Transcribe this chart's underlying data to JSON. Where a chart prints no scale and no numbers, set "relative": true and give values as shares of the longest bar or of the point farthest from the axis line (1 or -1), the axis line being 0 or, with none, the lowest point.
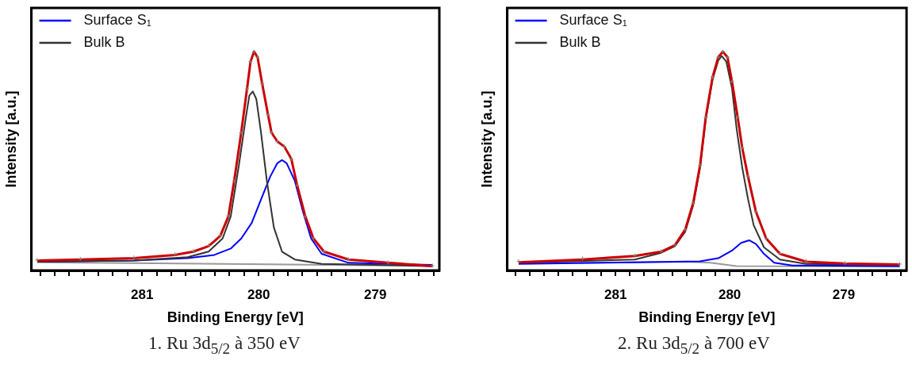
{
  "chart_data": [
    {
      "type": "line",
      "title": "1. Ru 3d$_{5/2}$ à 350 eV",
      "xlabel": "Binding Energy [eV]",
      "ylabel": "Intensity [a.u.]",
      "relative": true,
      "legend": "top left",
      "grid": false,
      "xlim": [
        281.95,
        278.45
      ],
      "xticks": [
        {
          "value": 281.875,
          "label": null
        },
        {
          "value": 281.75,
          "label": null
        },
        {
          "value": 281.625,
          "label": null
        },
        {
          "value": 281.5,
          "label": null
        },
        {
          "value": 281.375,
          "label": null
        },
        {
          "value": 281.25,
          "label": null
        },
        {
          "value": 281.125,
          "label": null
        },
        281,
        {
          "value": 280.875,
          "label": null
        },
        {
          "value": 280.75,
          "label": null
        },
        {
          "value": 280.625,
          "label": null
        },
        {
          "value": 280.5,
          "label": null
        },
        {
          "value": 280.375,
          "label": null
        },
        {
          "value": 280.25,
          "label": null
        },
        {
          "value": 280.125,
          "label": null
        },
        280,
        {
          "value": 279.875,
          "label": null
        },
        {
          "value": 279.75,
          "label": null
        },
        {
          "value": 279.625,
          "label": null
        },
        {
          "value": 279.5,
          "label": null
        },
        {
          "value": 279.375,
          "label": null
        },
        {
          "value": 279.25,
          "label": null
        },
        {
          "value": 279.125,
          "label": null
        },
        279,
        {
          "value": 278.875,
          "label": null
        },
        {
          "value": 278.75,
          "label": null
        },
        {
          "value": 278.625,
          "label": null
        },
        {
          "value": 278.5,
          "label": null
        }
      ],
      "series": [
        {
          "color": "#999999",
          "x": [
            281.9,
            279.92,
            278.51
          ],
          "values": [
            0.037,
            0.028,
            0.02
          ]
        },
        {
          "name": "Surface S₁",
          "color": "#0000ff",
          "x": [
            281.9,
            281.07,
            280.61,
            280.38,
            280.24,
            280.15,
            280.06,
            279.97,
            279.9,
            279.84,
            279.8,
            279.76,
            279.69,
            279.62,
            279.55,
            279.46,
            279.23,
            278.51
          ],
          "values": [
            0.04,
            0.045,
            0.056,
            0.071,
            0.1,
            0.146,
            0.217,
            0.338,
            0.43,
            0.49,
            0.505,
            0.49,
            0.41,
            0.268,
            0.146,
            0.076,
            0.035,
            0.025
          ]
        },
        {
          "name": "Bulk B",
          "color": "#333333",
          "x": [
            281.9,
            281.07,
            280.61,
            280.43,
            280.31,
            280.24,
            280.17,
            280.11,
            280.08,
            280.05,
            280.02,
            279.98,
            279.93,
            279.87,
            279.8,
            279.69,
            279.46,
            279.0,
            278.51
          ],
          "values": [
            0.04,
            0.045,
            0.061,
            0.086,
            0.146,
            0.247,
            0.48,
            0.7,
            0.8,
            0.818,
            0.783,
            0.63,
            0.41,
            0.197,
            0.086,
            0.05,
            0.03,
            0.025,
            0.02
          ]
        },
        {
          "type": "scatter",
          "marker": "cross",
          "color": "#808080",
          "x": [
            281.9,
            281.53,
            281.07,
            280.72,
            280.56,
            280.43,
            280.33,
            280.26,
            280.21,
            280.15,
            280.1,
            280.07,
            280.04,
            280.01,
            279.97,
            279.92,
            279.89,
            279.84,
            279.78,
            279.72,
            279.67,
            279.6,
            279.53,
            279.44,
            279.23,
            278.89,
            278.51
          ],
          "values": [
            0.048,
            0.053,
            0.059,
            0.074,
            0.089,
            0.114,
            0.16,
            0.25,
            0.41,
            0.63,
            0.83,
            0.955,
            1.0,
            0.975,
            0.854,
            0.712,
            0.63,
            0.59,
            0.566,
            0.51,
            0.389,
            0.247,
            0.146,
            0.086,
            0.052,
            0.037,
            0.022
          ]
        },
        {
          "color": "#cc0000",
          "x": [
            281.9,
            281.53,
            281.07,
            280.72,
            280.56,
            280.43,
            280.33,
            280.26,
            280.21,
            280.15,
            280.1,
            280.07,
            280.04,
            280.01,
            279.97,
            279.92,
            279.89,
            279.84,
            279.78,
            279.72,
            279.67,
            279.6,
            279.53,
            279.44,
            279.23,
            278.89,
            278.51
          ],
          "values": [
            0.045,
            0.05,
            0.056,
            0.071,
            0.086,
            0.111,
            0.157,
            0.247,
            0.41,
            0.63,
            0.83,
            0.955,
            1.0,
            0.975,
            0.854,
            0.712,
            0.63,
            0.59,
            0.566,
            0.51,
            0.389,
            0.247,
            0.146,
            0.086,
            0.05,
            0.035,
            0.02
          ]
        }
      ]
    },
    {
      "type": "line",
      "title": "2. Ru 3d$_{5/2}$ à 700 eV",
      "xlabel": "Binding Energy [eV]",
      "ylabel": "Intensity [a.u.]",
      "relative": true,
      "legend": "top left",
      "grid": false,
      "xlim": [
        281.95,
        278.45
      ],
      "xticks": [
        {
          "value": 281.875,
          "label": null
        },
        {
          "value": 281.75,
          "label": null
        },
        {
          "value": 281.625,
          "label": null
        },
        {
          "value": 281.5,
          "label": null
        },
        {
          "value": 281.375,
          "label": null
        },
        {
          "value": 281.25,
          "label": null
        },
        {
          "value": 281.125,
          "label": null
        },
        281,
        {
          "value": 280.875,
          "label": null
        },
        {
          "value": 280.75,
          "label": null
        },
        {
          "value": 280.625,
          "label": null
        },
        {
          "value": 280.5,
          "label": null
        },
        {
          "value": 280.375,
          "label": null
        },
        {
          "value": 280.25,
          "label": null
        },
        {
          "value": 280.125,
          "label": null
        },
        280,
        {
          "value": 279.875,
          "label": null
        },
        {
          "value": 279.75,
          "label": null
        },
        {
          "value": 279.625,
          "label": null
        },
        {
          "value": 279.5,
          "label": null
        },
        {
          "value": 279.375,
          "label": null
        },
        {
          "value": 279.25,
          "label": null
        },
        {
          "value": 279.125,
          "label": null
        },
        279,
        {
          "value": 278.875,
          "label": null
        },
        {
          "value": 278.75,
          "label": null
        },
        {
          "value": 278.625,
          "label": null
        },
        {
          "value": 278.5,
          "label": null
        }
      ],
      "series": [
        {
          "color": "#999999",
          "x": [
            281.85,
            280.4,
            280.17,
            279.94,
            278.51
          ],
          "values": [
            0.033,
            0.04,
            0.035,
            0.02,
            0.017
          ]
        },
        {
          "name": "Surface S₁",
          "color": "#0000ff",
          "x": [
            281.85,
            280.83,
            280.26,
            280.1,
            279.98,
            279.9,
            279.83,
            279.77,
            279.7,
            279.61,
            279.45,
            278.51
          ],
          "values": [
            0.03,
            0.037,
            0.042,
            0.056,
            0.091,
            0.126,
            0.138,
            0.121,
            0.076,
            0.035,
            0.023,
            0.02
          ]
        },
        {
          "name": "Bulk B",
          "color": "#333333",
          "x": [
            281.85,
            280.83,
            280.6,
            280.48,
            280.39,
            280.32,
            280.26,
            280.21,
            280.15,
            280.1,
            280.07,
            280.03,
            279.98,
            279.94,
            279.89,
            279.84,
            279.79,
            279.7,
            279.56,
            279.33,
            278.51
          ],
          "values": [
            0.035,
            0.05,
            0.081,
            0.111,
            0.177,
            0.298,
            0.47,
            0.69,
            0.874,
            0.96,
            0.98,
            0.955,
            0.833,
            0.65,
            0.47,
            0.328,
            0.207,
            0.106,
            0.05,
            0.03,
            0.025
          ]
        },
        {
          "type": "scatter",
          "marker": "cross",
          "color": "#808080",
          "x": [
            281.85,
            281.29,
            280.83,
            280.6,
            280.48,
            280.39,
            280.32,
            280.26,
            280.21,
            280.15,
            280.1,
            280.06,
            280.02,
            279.98,
            279.93,
            279.89,
            279.84,
            279.77,
            279.68,
            279.56,
            279.33,
            278.99,
            278.51
          ],
          "values": [
            0.042,
            0.054,
            0.068,
            0.088,
            0.116,
            0.187,
            0.308,
            0.48,
            0.7,
            0.884,
            0.975,
            1.0,
            0.975,
            0.864,
            0.7,
            0.56,
            0.43,
            0.268,
            0.146,
            0.078,
            0.043,
            0.034,
            0.029
          ]
        },
        {
          "color": "#cc0000",
          "x": [
            281.85,
            281.29,
            280.83,
            280.6,
            280.48,
            280.39,
            280.32,
            280.26,
            280.21,
            280.15,
            280.1,
            280.06,
            280.02,
            279.98,
            279.93,
            279.89,
            279.84,
            279.77,
            279.68,
            279.56,
            279.33,
            278.99,
            278.51
          ],
          "values": [
            0.037,
            0.05,
            0.066,
            0.086,
            0.116,
            0.187,
            0.308,
            0.48,
            0.7,
            0.884,
            0.975,
            1.0,
            0.975,
            0.864,
            0.7,
            0.56,
            0.43,
            0.268,
            0.146,
            0.076,
            0.04,
            0.032,
            0.027
          ]
        }
      ]
    }
  ]
}
